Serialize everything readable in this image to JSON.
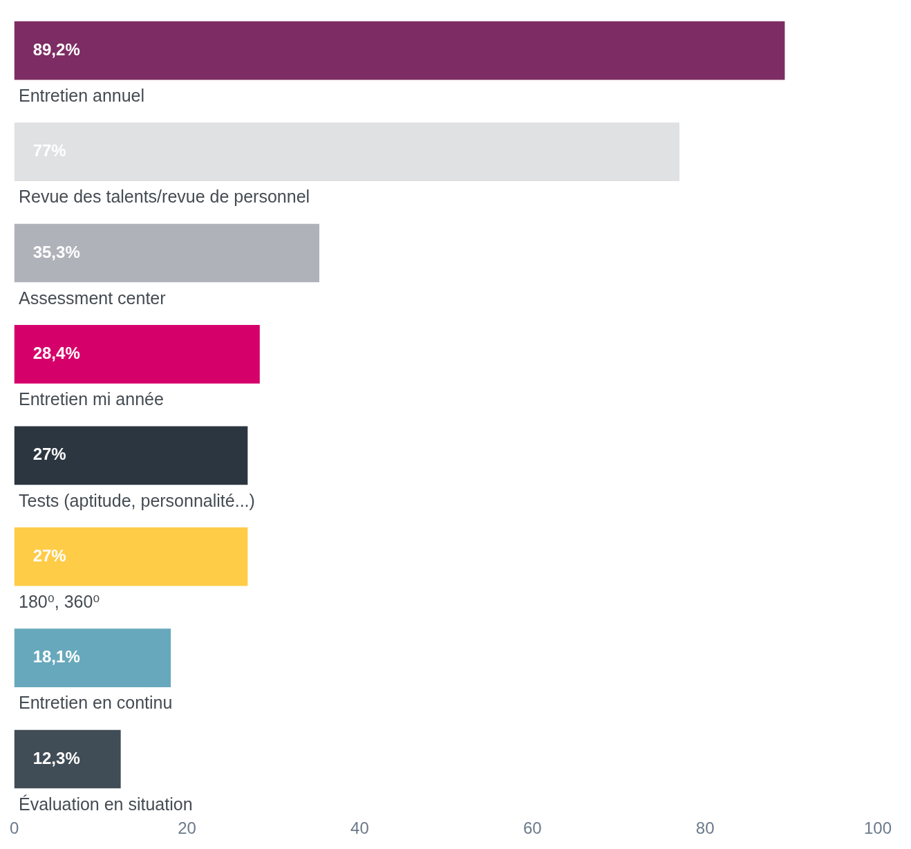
{
  "chart_data": {
    "type": "bar",
    "orientation": "horizontal",
    "categories": [
      "Entretien annuel",
      "Revue des talents/revue de personnel",
      "Assessment center",
      "Entretien mi année",
      "Tests (aptitude, personnalité...)",
      "180⁰, 360⁰",
      "Entretien en continu",
      "Évaluation en situation"
    ],
    "values": [
      89.2,
      77,
      35.3,
      28.4,
      27,
      27,
      18.1,
      12.3
    ],
    "colors": [
      "#7d2d63",
      "#e0e1e3",
      "#b0b2ba",
      "#d6006a",
      "#2c3640",
      "#ffcc48",
      "#67a8bc",
      "#414d56"
    ],
    "value_labels": [
      "89,2%",
      "77%",
      "35,3%",
      "28,4%",
      "27%",
      "27%",
      "18,1%",
      "12,3%"
    ],
    "xlim": [
      0,
      100
    ],
    "xticks": [
      0,
      20,
      40,
      60,
      80,
      100
    ]
  }
}
